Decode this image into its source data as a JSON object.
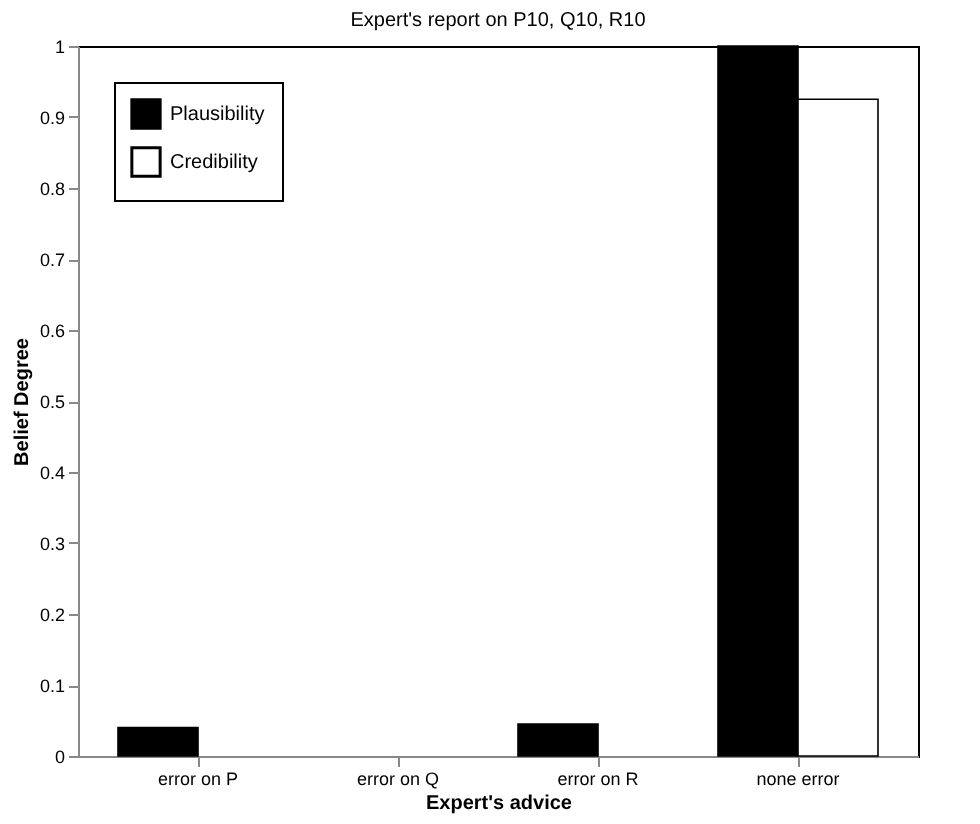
{
  "chart_data": {
    "type": "bar",
    "title": "Expert's report on  P10, Q10, R10",
    "xlabel": "Expert's advice",
    "ylabel": "Belief Degree",
    "categories": [
      "error on P",
      "error on Q",
      "error on R",
      "none error"
    ],
    "series": [
      {
        "name": "Plausibility",
        "color": "#000000",
        "values": [
          0.04,
          0,
          0.045,
          1.0
        ]
      },
      {
        "name": "Credibility",
        "color": "#ffffff",
        "values": [
          0,
          0,
          0,
          0.925
        ]
      }
    ],
    "ylim": [
      0,
      1
    ],
    "yticks": [
      0,
      0.1,
      0.2,
      0.3,
      0.4,
      0.5,
      0.6,
      0.7,
      0.8,
      0.9,
      1
    ],
    "grid": false,
    "legend": "top left"
  }
}
